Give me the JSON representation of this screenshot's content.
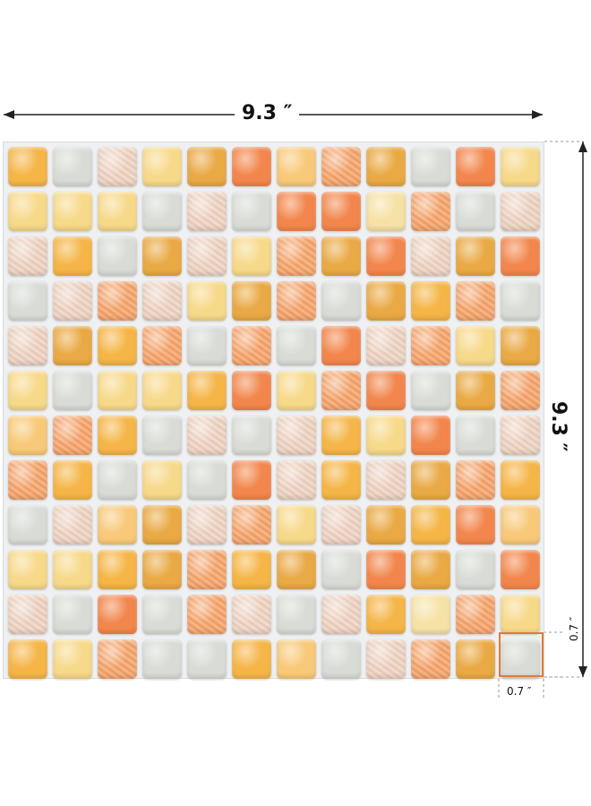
{
  "dimensions": {
    "width_label": "9.3 ″",
    "height_label": "9.3 ″",
    "tile_width_label": "0.7 ″",
    "tile_height_label": "0.7 ″"
  },
  "accent_color": "#e47a36",
  "palette": {
    "A": "#f5b547",
    "B": "#d9dcd6",
    "C": "#efd3c2",
    "D": "#f7d98a",
    "E": "#e9a944",
    "F": "#f2864c",
    "G": "#f8c978",
    "H": "#f7a46a",
    "I": "#f6e2a6"
  },
  "grid": [
    "ABCDEFGHEBFD",
    "DDDBCBFFIHBC",
    "CABECDHEFCEF",
    "BCHCDEHBEAHB",
    "CEAHBHBFCHDE",
    "DBDDAFDHFBEH",
    "GHABCBCADFBC",
    "HABDBFCACEHA",
    "BCGECHDCEAFG",
    "DDAEHAEBFEBF",
    "CBFBHCBCAIHD",
    "ADHBBAGBCHEB"
  ]
}
